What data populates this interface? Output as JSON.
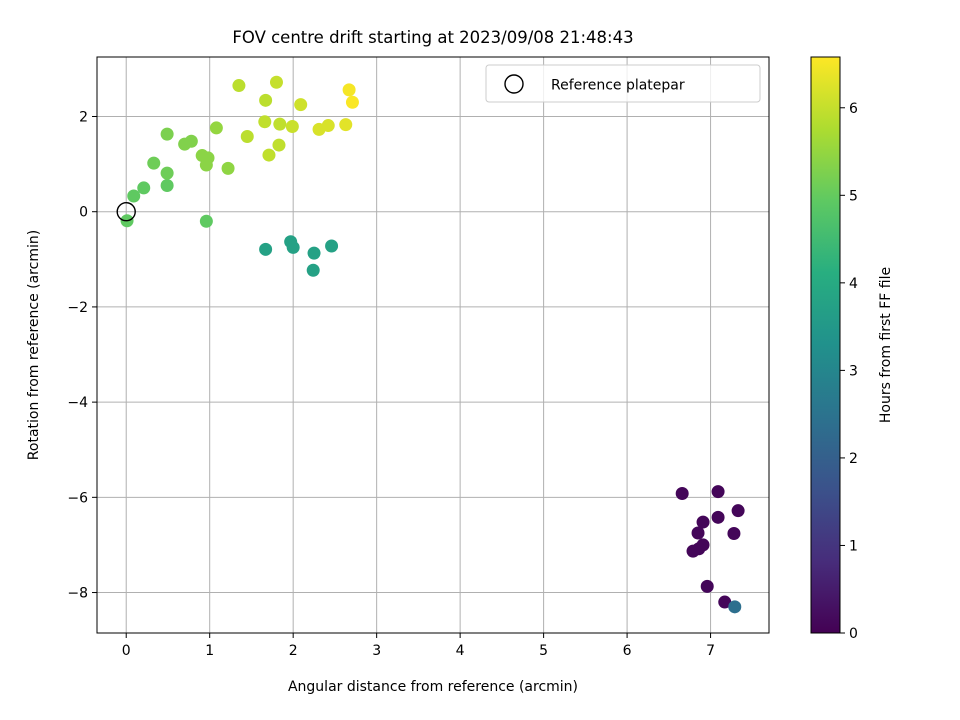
{
  "chart_data": {
    "type": "scatter",
    "title": "FOV centre drift starting at 2023/09/08 21:48:43",
    "xlabel": "Angular distance from reference (arcmin)",
    "ylabel": "Rotation from reference (arcmin)",
    "xlim": [
      -0.35,
      7.7
    ],
    "ylim": [
      -8.85,
      3.25
    ],
    "xticks": [
      0,
      1,
      2,
      3,
      4,
      5,
      6,
      7
    ],
    "yticks": [
      -8,
      -6,
      -4,
      -2,
      0,
      2
    ],
    "grid": true,
    "legend": {
      "placement": "top-right",
      "entries": [
        "Reference platepar"
      ]
    },
    "reference_point": {
      "x": 0,
      "y": 0
    },
    "colorbar": {
      "label": "Hours from first FF file",
      "colormap": "viridis",
      "range": [
        0,
        6.58
      ],
      "ticks": [
        0,
        1,
        2,
        3,
        4,
        5,
        6
      ]
    },
    "points": [
      {
        "x": 6.66,
        "y": -5.92,
        "c": 0.1
      },
      {
        "x": 7.09,
        "y": -5.88,
        "c": 0.1
      },
      {
        "x": 7.33,
        "y": -6.28,
        "c": 0.1
      },
      {
        "x": 7.09,
        "y": -6.42,
        "c": 0.1
      },
      {
        "x": 6.91,
        "y": -6.52,
        "c": 0.1
      },
      {
        "x": 6.85,
        "y": -6.75,
        "c": 0.1
      },
      {
        "x": 7.28,
        "y": -6.76,
        "c": 0.1
      },
      {
        "x": 6.91,
        "y": -7.0,
        "c": 0.1
      },
      {
        "x": 6.86,
        "y": -7.08,
        "c": 0.1
      },
      {
        "x": 6.79,
        "y": -7.13,
        "c": 0.1
      },
      {
        "x": 6.96,
        "y": -7.87,
        "c": 0.1
      },
      {
        "x": 7.17,
        "y": -8.2,
        "c": 0.1
      },
      {
        "x": 7.29,
        "y": -8.3,
        "c": 2.4
      },
      {
        "x": 1.67,
        "y": -0.79,
        "c": 3.75
      },
      {
        "x": 1.97,
        "y": -0.63,
        "c": 3.75
      },
      {
        "x": 2.0,
        "y": -0.75,
        "c": 3.75
      },
      {
        "x": 2.25,
        "y": -0.87,
        "c": 3.75
      },
      {
        "x": 2.46,
        "y": -0.72,
        "c": 3.75
      },
      {
        "x": 2.24,
        "y": -1.23,
        "c": 3.75
      },
      {
        "x": 0.01,
        "y": -0.19,
        "c": 4.95
      },
      {
        "x": 0.96,
        "y": -0.2,
        "c": 4.95
      },
      {
        "x": 0.09,
        "y": 0.33,
        "c": 4.95
      },
      {
        "x": 0.21,
        "y": 0.5,
        "c": 4.95
      },
      {
        "x": 0.49,
        "y": 0.55,
        "c": 4.95
      },
      {
        "x": 0.49,
        "y": 0.81,
        "c": 5.1
      },
      {
        "x": 0.33,
        "y": 1.02,
        "c": 5.1
      },
      {
        "x": 0.49,
        "y": 1.63,
        "c": 5.25
      },
      {
        "x": 0.7,
        "y": 1.42,
        "c": 5.3
      },
      {
        "x": 0.78,
        "y": 1.48,
        "c": 5.3
      },
      {
        "x": 0.91,
        "y": 1.18,
        "c": 5.4
      },
      {
        "x": 0.98,
        "y": 1.13,
        "c": 5.4
      },
      {
        "x": 0.96,
        "y": 0.98,
        "c": 5.4
      },
      {
        "x": 1.22,
        "y": 0.91,
        "c": 5.45
      },
      {
        "x": 1.08,
        "y": 1.76,
        "c": 5.5
      },
      {
        "x": 1.35,
        "y": 2.65,
        "c": 5.9
      },
      {
        "x": 1.45,
        "y": 1.58,
        "c": 5.9
      },
      {
        "x": 1.67,
        "y": 2.34,
        "c": 5.9
      },
      {
        "x": 1.66,
        "y": 1.89,
        "c": 5.95
      },
      {
        "x": 1.71,
        "y": 1.19,
        "c": 5.95
      },
      {
        "x": 1.8,
        "y": 2.72,
        "c": 6.0
      },
      {
        "x": 1.84,
        "y": 1.84,
        "c": 5.95
      },
      {
        "x": 1.83,
        "y": 1.4,
        "c": 5.95
      },
      {
        "x": 1.99,
        "y": 1.79,
        "c": 6.05
      },
      {
        "x": 2.09,
        "y": 2.25,
        "c": 6.1
      },
      {
        "x": 2.31,
        "y": 1.73,
        "c": 6.2
      },
      {
        "x": 2.42,
        "y": 1.81,
        "c": 6.2
      },
      {
        "x": 2.63,
        "y": 1.83,
        "c": 6.3
      },
      {
        "x": 2.67,
        "y": 2.56,
        "c": 6.5
      },
      {
        "x": 2.71,
        "y": 2.3,
        "c": 6.55
      }
    ]
  }
}
